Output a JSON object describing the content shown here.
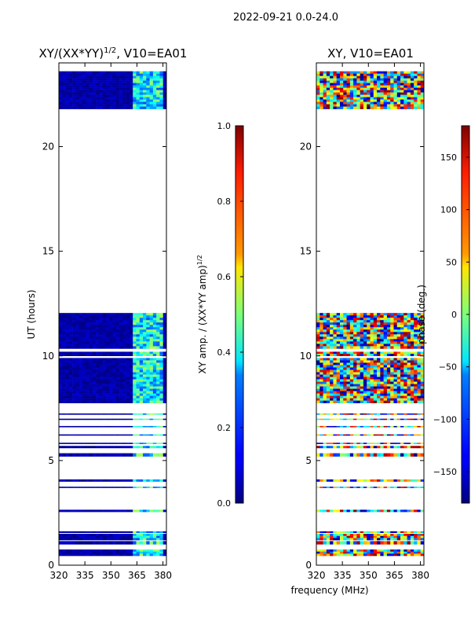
{
  "figure_title": "2022-09-21 0.0-24.0",
  "shared_xlabel": "frequency (MHz)",
  "chart_data": [
    {
      "type": "heatmap",
      "title": "XY/(XX*YY)",
      "title_superscript": "1/2",
      "title_suffix": ", V10=EA01",
      "xlabel": "",
      "ylabel": "UT (hours)",
      "xlim": [
        320,
        382
      ],
      "ylim": [
        0,
        24
      ],
      "xticks": [
        320,
        335,
        350,
        365,
        380
      ],
      "yticks": [
        0,
        5,
        10,
        15,
        20
      ],
      "colorbar": {
        "label": "XY amp. / (XX*YY amp)",
        "label_superscript": "1/2",
        "min": 0.0,
        "max": 1.0,
        "ticks": [
          "0.0",
          "0.2",
          "0.4",
          "0.6",
          "0.8",
          "1.0"
        ],
        "tick_values": [
          0,
          0.2,
          0.4,
          0.6,
          0.8,
          1.0
        ]
      },
      "data_time_ranges_hours": [
        [
          0.45,
          0.75
        ],
        [
          1.0,
          1.15
        ],
        [
          1.2,
          1.5
        ],
        [
          1.55,
          1.62
        ],
        [
          2.55,
          2.65
        ],
        [
          3.7,
          3.75
        ],
        [
          4.0,
          4.1
        ],
        [
          5.2,
          5.35
        ],
        [
          5.6,
          5.7
        ],
        [
          5.8,
          5.85
        ],
        [
          6.2,
          6.25
        ],
        [
          6.6,
          6.65
        ],
        [
          6.95,
          7.0
        ],
        [
          7.2,
          7.25
        ],
        [
          7.75,
          9.9
        ],
        [
          10.0,
          10.2
        ],
        [
          10.35,
          12.05
        ],
        [
          21.8,
          23.6
        ]
      ],
      "bright_band_mhz": [
        362,
        381
      ]
    },
    {
      "type": "heatmap",
      "title": "XY, V10=EA01",
      "xlabel": "",
      "ylabel": "",
      "xlim": [
        320,
        382
      ],
      "ylim": [
        0,
        24
      ],
      "xticks": [
        320,
        335,
        350,
        365,
        380
      ],
      "yticks": [
        0,
        5,
        10,
        15,
        20
      ],
      "colorbar": {
        "label": "phase (deg.)",
        "min": -180,
        "max": 180,
        "ticks": [
          "150",
          "100",
          "50",
          "0",
          "−50",
          "−100",
          "−150"
        ],
        "tick_values": [
          150,
          100,
          50,
          0,
          -50,
          -100,
          -150
        ]
      },
      "data_time_ranges_hours": [
        [
          0.45,
          0.75
        ],
        [
          1.0,
          1.15
        ],
        [
          1.2,
          1.5
        ],
        [
          1.55,
          1.62
        ],
        [
          2.55,
          2.65
        ],
        [
          3.7,
          3.75
        ],
        [
          4.0,
          4.1
        ],
        [
          5.2,
          5.35
        ],
        [
          5.6,
          5.7
        ],
        [
          5.8,
          5.85
        ],
        [
          6.2,
          6.25
        ],
        [
          6.6,
          6.65
        ],
        [
          6.95,
          7.0
        ],
        [
          7.2,
          7.25
        ],
        [
          7.75,
          9.9
        ],
        [
          10.0,
          10.2
        ],
        [
          10.35,
          12.05
        ],
        [
          21.8,
          23.6
        ]
      ]
    }
  ]
}
